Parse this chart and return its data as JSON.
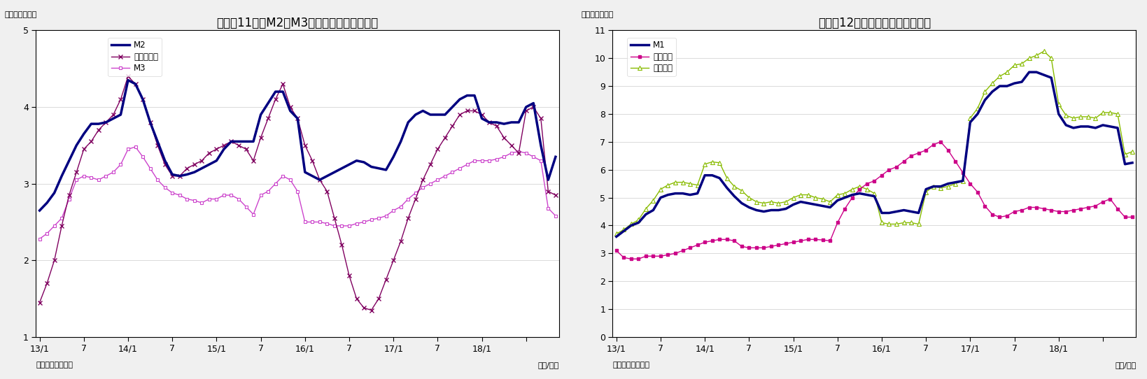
{
  "chart1": {
    "title": "（図表11）　M2、M3、広義流動性の伸び率",
    "ylabel": "（前年比、％）",
    "source": "（資料）日本銀行",
    "date_label": "（年/月）",
    "ylim": [
      1,
      5
    ],
    "yticks": [
      1,
      2,
      3,
      4,
      5
    ],
    "xtick_pos": [
      0,
      6,
      12,
      18,
      24,
      30,
      36,
      42,
      48,
      54,
      60,
      66
    ],
    "xtick_labels": [
      "13/1",
      "7",
      "14/1",
      "7",
      "15/1",
      "7",
      "16/1",
      "7",
      "17/1",
      "7",
      "18/1",
      ""
    ],
    "M2": [
      2.65,
      2.75,
      2.88,
      3.1,
      3.3,
      3.5,
      3.65,
      3.78,
      3.78,
      3.8,
      3.85,
      3.9,
      4.35,
      4.3,
      4.1,
      3.8,
      3.55,
      3.3,
      3.12,
      3.1,
      3.12,
      3.15,
      3.2,
      3.25,
      3.3,
      3.45,
      3.55,
      3.55,
      3.55,
      3.55,
      3.9,
      4.05,
      4.2,
      4.2,
      3.95,
      3.85,
      3.15,
      3.1,
      3.05,
      3.1,
      3.15,
      3.2,
      3.25,
      3.3,
      3.28,
      3.22,
      3.2,
      3.18,
      3.35,
      3.55,
      3.8,
      3.9,
      3.95,
      3.9,
      3.9,
      3.9,
      4.0,
      4.1,
      4.15,
      4.15,
      3.85,
      3.8,
      3.8,
      3.78,
      3.8,
      3.8,
      4.0,
      4.05,
      3.5,
      3.05,
      3.35
    ],
    "kougi": [
      1.45,
      1.7,
      2.0,
      2.45,
      2.85,
      3.15,
      3.45,
      3.55,
      3.7,
      3.8,
      3.9,
      4.1,
      4.4,
      4.3,
      4.1,
      3.8,
      3.5,
      3.25,
      3.1,
      3.1,
      3.2,
      3.25,
      3.3,
      3.4,
      3.45,
      3.5,
      3.55,
      3.5,
      3.45,
      3.3,
      3.6,
      3.85,
      4.1,
      4.3,
      4.0,
      3.85,
      3.5,
      3.3,
      3.05,
      2.9,
      2.55,
      2.2,
      1.8,
      1.5,
      1.38,
      1.35,
      1.5,
      1.75,
      2.0,
      2.25,
      2.55,
      2.8,
      3.05,
      3.25,
      3.45,
      3.6,
      3.75,
      3.9,
      3.95,
      3.95,
      3.9,
      3.8,
      3.75,
      3.6,
      3.5,
      3.4,
      3.95,
      4.0,
      3.85,
      2.9,
      2.85
    ],
    "M3": [
      2.28,
      2.35,
      2.45,
      2.55,
      2.8,
      3.05,
      3.1,
      3.08,
      3.05,
      3.1,
      3.15,
      3.25,
      3.45,
      3.48,
      3.35,
      3.2,
      3.05,
      2.95,
      2.88,
      2.85,
      2.8,
      2.78,
      2.75,
      2.8,
      2.8,
      2.85,
      2.85,
      2.8,
      2.7,
      2.6,
      2.85,
      2.9,
      3.0,
      3.1,
      3.05,
      2.9,
      2.5,
      2.5,
      2.5,
      2.48,
      2.45,
      2.45,
      2.45,
      2.48,
      2.5,
      2.53,
      2.55,
      2.58,
      2.65,
      2.7,
      2.8,
      2.88,
      2.95,
      3.0,
      3.05,
      3.1,
      3.15,
      3.2,
      3.25,
      3.3,
      3.3,
      3.3,
      3.32,
      3.35,
      3.4,
      3.42,
      3.4,
      3.35,
      3.3,
      2.68,
      2.58
    ],
    "M2_label": "M2",
    "kougi_label": "広義流動性",
    "M3_label": "M3",
    "M2_color": "#000080",
    "kougi_color": "#800060",
    "M3_color": "#cc44cc"
  },
  "chart2": {
    "title": "（図表12）　現金・預金の伸び率",
    "ylabel": "（前年比、％）",
    "source": "（資料）日本銀行",
    "date_label": "（年/月）",
    "ylim": [
      0,
      11
    ],
    "yticks": [
      0,
      1,
      2,
      3,
      4,
      5,
      6,
      7,
      8,
      9,
      10,
      11
    ],
    "xtick_pos": [
      0,
      6,
      12,
      18,
      24,
      30,
      36,
      42,
      48,
      54,
      60,
      66
    ],
    "xtick_labels": [
      "13/1",
      "7",
      "14/1",
      "7",
      "15/1",
      "7",
      "16/1",
      "7",
      "17/1",
      "7",
      "18/1",
      ""
    ],
    "M1": [
      3.6,
      3.8,
      4.0,
      4.1,
      4.4,
      4.55,
      5.0,
      5.1,
      5.15,
      5.15,
      5.1,
      5.15,
      5.8,
      5.8,
      5.7,
      5.35,
      5.05,
      4.8,
      4.65,
      4.55,
      4.5,
      4.55,
      4.55,
      4.6,
      4.75,
      4.85,
      4.8,
      4.75,
      4.7,
      4.65,
      4.9,
      5.0,
      5.1,
      5.15,
      5.1,
      5.05,
      4.45,
      4.45,
      4.5,
      4.55,
      4.5,
      4.45,
      5.3,
      5.4,
      5.4,
      5.5,
      5.55,
      5.6,
      7.7,
      8.0,
      8.5,
      8.8,
      9.0,
      9.0,
      9.1,
      9.15,
      9.5,
      9.5,
      9.4,
      9.3,
      8.0,
      7.6,
      7.5,
      7.55,
      7.55,
      7.5,
      7.6,
      7.55,
      7.5,
      6.2,
      6.25
    ],
    "genkin": [
      3.1,
      2.85,
      2.8,
      2.8,
      2.9,
      2.9,
      2.9,
      2.95,
      3.0,
      3.1,
      3.2,
      3.3,
      3.4,
      3.45,
      3.5,
      3.5,
      3.45,
      3.25,
      3.2,
      3.2,
      3.2,
      3.25,
      3.3,
      3.35,
      3.4,
      3.45,
      3.5,
      3.5,
      3.48,
      3.45,
      4.1,
      4.6,
      5.0,
      5.3,
      5.5,
      5.6,
      5.8,
      6.0,
      6.1,
      6.3,
      6.5,
      6.6,
      6.7,
      6.9,
      7.0,
      6.7,
      6.3,
      5.9,
      5.5,
      5.2,
      4.7,
      4.4,
      4.3,
      4.35,
      4.5,
      4.55,
      4.65,
      4.65,
      4.6,
      4.55,
      4.5,
      4.5,
      4.55,
      4.6,
      4.65,
      4.7,
      4.85,
      4.95,
      4.6,
      4.3,
      4.3
    ],
    "yokin": [
      3.7,
      3.85,
      4.05,
      4.2,
      4.6,
      4.9,
      5.3,
      5.45,
      5.55,
      5.55,
      5.5,
      5.45,
      6.2,
      6.28,
      6.25,
      5.7,
      5.4,
      5.25,
      5.0,
      4.85,
      4.8,
      4.85,
      4.8,
      4.85,
      5.0,
      5.1,
      5.1,
      5.0,
      4.95,
      4.85,
      5.1,
      5.15,
      5.3,
      5.4,
      5.3,
      5.15,
      4.1,
      4.05,
      4.05,
      4.1,
      4.1,
      4.05,
      5.2,
      5.4,
      5.35,
      5.4,
      5.5,
      5.6,
      7.85,
      8.2,
      8.8,
      9.1,
      9.35,
      9.5,
      9.75,
      9.8,
      10.0,
      10.1,
      10.25,
      10.0,
      8.35,
      7.95,
      7.85,
      7.9,
      7.9,
      7.85,
      8.05,
      8.05,
      8.0,
      6.55,
      6.65
    ],
    "M1_label": "M1",
    "genkin_label": "現金通貨",
    "yokin_label": "預金通貨",
    "M1_color": "#000080",
    "genkin_color": "#cc0088",
    "yokin_color": "#88bb00"
  }
}
